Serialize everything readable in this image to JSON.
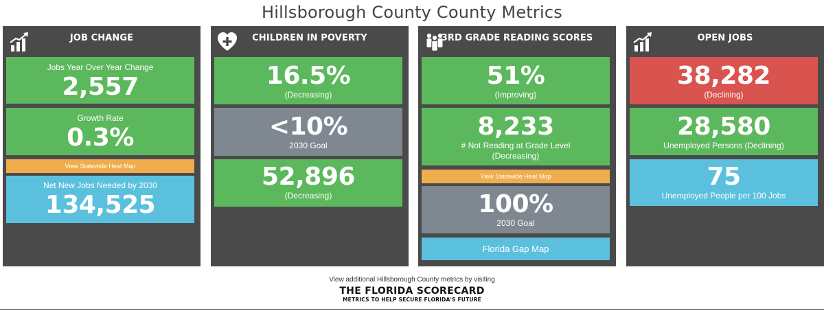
{
  "page_title": "Hillsborough County County Metrics",
  "panels": {
    "job_change": {
      "title": "JOB CHANGE",
      "icon": "bar-chart-growth-icon",
      "cards": [
        {
          "label": "Jobs Year Over Year Change",
          "value": "2,557"
        },
        {
          "label": "Growth Rate",
          "value": "0.3%"
        },
        {
          "label": "Net New Jobs Needed by 2030",
          "value": "134,525"
        }
      ],
      "heat_map_label": "View Statewide Heat Map"
    },
    "children_poverty": {
      "title": "CHILDREN IN POVERTY",
      "icon": "heart-plus-icon",
      "cards": [
        {
          "value": "16.5%",
          "label": "(Decreasing)"
        },
        {
          "value": "<10%",
          "label": "2030 Goal"
        },
        {
          "value": "52,896",
          "label": "(Decreasing)"
        }
      ]
    },
    "reading_scores": {
      "title": "3RD GRADE READING SCORES",
      "icon": "group-people-icon",
      "cards": [
        {
          "value": "51%",
          "label": "(Improving)"
        },
        {
          "value": "8,233",
          "label": "# Not Reading at Grade Level",
          "label2": "(Decreasing)"
        },
        {
          "value": "100%",
          "label": "2030 Goal"
        }
      ],
      "heat_map_label": "View Statewide Heat Map",
      "gap_map_label": "Florida Gap Map"
    },
    "open_jobs": {
      "title": "OPEN JOBS",
      "icon": "bar-chart-growth-icon",
      "cards": [
        {
          "value": "38,282",
          "label": "(Declining)"
        },
        {
          "value": "28,580",
          "label": "Unemployed Persons (Declining)"
        },
        {
          "value": "75",
          "label": "Unemployed People per 100 Jobs"
        }
      ]
    }
  },
  "footer": {
    "text": "View additional Hillsborough County metrics by visiting",
    "brand_name": "THE FLORIDA SCORECARD",
    "brand_tagline": "METRICS TO HELP SECURE FLORIDA'S FUTURE"
  },
  "colors": {
    "panel_bg": "#4a4a4a",
    "green": "#5cb85c",
    "gray": "#7f8891",
    "red": "#d9534f",
    "blue": "#5bc0de",
    "orange": "#f0ad4e"
  }
}
